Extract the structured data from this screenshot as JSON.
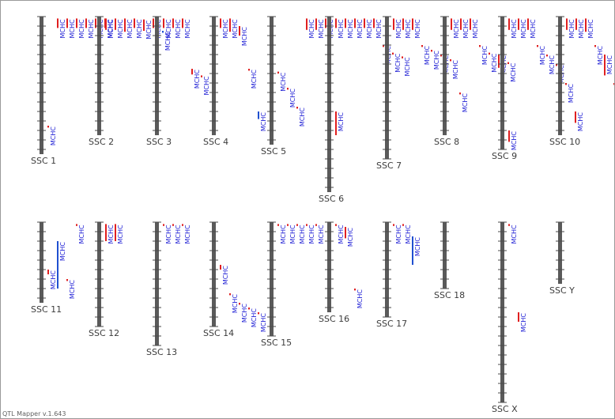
{
  "app": {
    "footer": "QTL Mapper v.1.643"
  },
  "colors": {
    "axis": "#5a5a5a",
    "tick": "#4a4a4a",
    "qtl_red": "#e02020",
    "qtl_blue": "#2050d0",
    "qtl_text": "#1a1ad4",
    "label": "#3c3c3c"
  },
  "trait": "MCHC",
  "chromosomes": [
    {
      "id": "SSC 1",
      "row": 0,
      "length_cM": 145,
      "qtl": [
        {
          "pos": 115,
          "color": "red"
        },
        {
          "pos": 2,
          "color": "red",
          "len": 10
        },
        {
          "pos": 2,
          "color": "red",
          "len": 10
        },
        {
          "pos": 2,
          "color": "red",
          "len": 10
        },
        {
          "pos": 2,
          "color": "red",
          "len": 10
        },
        {
          "pos": 2,
          "color": "red",
          "len": 10
        },
        {
          "pos": 2,
          "color": "red",
          "len": 10
        }
      ]
    },
    {
      "id": "SSC 2",
      "row": 0,
      "length_cM": 125,
      "qtl": [
        {
          "pos": 2,
          "color": "red",
          "len": 12
        },
        {
          "pos": 2,
          "color": "red",
          "len": 12
        },
        {
          "pos": 2,
          "color": "red",
          "len": 14
        },
        {
          "pos": 2,
          "color": "red",
          "len": 10
        },
        {
          "pos": 3,
          "color": "red",
          "len": 12
        },
        {
          "pos": 2,
          "color": "red",
          "len": 10
        },
        {
          "pos": 15,
          "color": "blue"
        }
      ]
    },
    {
      "id": "SSC 3",
      "row": 0,
      "length_cM": 125,
      "qtl": [
        {
          "pos": 2,
          "color": "red",
          "len": 10
        },
        {
          "pos": 2,
          "color": "red",
          "len": 10
        },
        {
          "pos": 2,
          "color": "red",
          "len": 10
        },
        {
          "pos": 55,
          "color": "red",
          "len": 6
        },
        {
          "pos": 62,
          "color": "red"
        }
      ]
    },
    {
      "id": "SSC 4",
      "row": 0,
      "length_cM": 125,
      "qtl": [
        {
          "pos": 2,
          "color": "red",
          "len": 10
        },
        {
          "pos": 2,
          "color": "red",
          "len": 14
        },
        {
          "pos": 10,
          "color": "red",
          "len": 10
        },
        {
          "pos": 55,
          "color": "red"
        },
        {
          "pos": 100,
          "color": "blue",
          "len": 8
        }
      ]
    },
    {
      "id": "SSC 5",
      "row": 0,
      "length_cM": 135,
      "qtl": [
        {
          "pos": 58,
          "color": "red"
        },
        {
          "pos": 75,
          "color": "red"
        },
        {
          "pos": 95,
          "color": "red"
        },
        {
          "pos": 2,
          "color": "red",
          "len": 12
        },
        {
          "pos": 2,
          "color": "red",
          "len": 12
        },
        {
          "pos": 2,
          "color": "red",
          "len": 10
        }
      ]
    },
    {
      "id": "SSC 6",
      "row": 0,
      "length_cM": 185,
      "qtl": [
        {
          "pos": 2,
          "color": "red",
          "len": 10
        },
        {
          "pos": 2,
          "color": "red",
          "len": 10
        },
        {
          "pos": 2,
          "color": "red",
          "len": 10
        },
        {
          "pos": 2,
          "color": "red",
          "len": 10
        },
        {
          "pos": 2,
          "color": "red",
          "len": 10
        },
        {
          "pos": 30,
          "color": "red"
        },
        {
          "pos": 38,
          "color": "red"
        },
        {
          "pos": 42,
          "color": "red"
        },
        {
          "pos": 100,
          "color": "red",
          "len": 25
        }
      ]
    },
    {
      "id": "SSC 7",
      "row": 0,
      "length_cM": 150,
      "qtl": [
        {
          "pos": 2,
          "color": "red",
          "len": 12
        },
        {
          "pos": 2,
          "color": "red",
          "len": 12
        },
        {
          "pos": 2,
          "color": "red",
          "len": 12
        },
        {
          "pos": 30,
          "color": "red"
        },
        {
          "pos": 35,
          "color": "red"
        },
        {
          "pos": 40,
          "color": "red"
        },
        {
          "pos": 45,
          "color": "red"
        },
        {
          "pos": 80,
          "color": "red"
        }
      ]
    },
    {
      "id": "SSC 8",
      "row": 0,
      "length_cM": 125,
      "qtl": [
        {
          "pos": 2,
          "color": "red",
          "len": 12
        },
        {
          "pos": 2,
          "color": "red",
          "len": 12
        },
        {
          "pos": 2,
          "color": "red",
          "len": 12
        },
        {
          "pos": 30,
          "color": "red"
        },
        {
          "pos": 38,
          "color": "red"
        },
        {
          "pos": 40,
          "color": "red",
          "len": 14
        },
        {
          "pos": 48,
          "color": "red"
        }
      ]
    },
    {
      "id": "SSC 9",
      "row": 0,
      "length_cM": 140,
      "qtl": [
        {
          "pos": 2,
          "color": "red",
          "len": 12
        },
        {
          "pos": 2,
          "color": "red",
          "len": 12
        },
        {
          "pos": 2,
          "color": "red",
          "len": 12
        },
        {
          "pos": 30,
          "color": "red"
        },
        {
          "pos": 40,
          "color": "red"
        },
        {
          "pos": 50,
          "color": "red"
        },
        {
          "pos": 70,
          "color": "red"
        },
        {
          "pos": 100,
          "color": "red",
          "len": 12
        },
        {
          "pos": 120,
          "color": "red",
          "len": 12
        }
      ]
    },
    {
      "id": "SSC 10",
      "row": 0,
      "length_cM": 125,
      "qtl": [
        {
          "pos": 2,
          "color": "red",
          "len": 12
        },
        {
          "pos": 2,
          "color": "red",
          "len": 12
        },
        {
          "pos": 2,
          "color": "red",
          "len": 14
        },
        {
          "pos": 30,
          "color": "red"
        },
        {
          "pos": 40,
          "color": "red",
          "len": 22
        },
        {
          "pos": 70,
          "color": "red"
        },
        {
          "pos": 105,
          "color": "red"
        }
      ]
    },
    {
      "id": "SSC 11",
      "row": 1,
      "length_cM": 85,
      "qtl": [
        {
          "pos": 50,
          "color": "red",
          "len": 5
        },
        {
          "pos": 20,
          "color": "blue",
          "len": 50
        },
        {
          "pos": 60,
          "color": "red"
        },
        {
          "pos": 2,
          "color": "red"
        }
      ]
    },
    {
      "id": "SSC 12",
      "row": 1,
      "length_cM": 110,
      "qtl": [
        {
          "pos": 2,
          "color": "red",
          "len": 18
        },
        {
          "pos": 2,
          "color": "red",
          "len": 18
        }
      ]
    },
    {
      "id": "SSC 13",
      "row": 1,
      "length_cM": 130,
      "qtl": [
        {
          "pos": 2,
          "color": "red"
        },
        {
          "pos": 2,
          "color": "red"
        },
        {
          "pos": 2,
          "color": "red"
        }
      ]
    },
    {
      "id": "SSC 14",
      "row": 1,
      "length_cM": 110,
      "qtl": [
        {
          "pos": 45,
          "color": "red",
          "len": 5
        },
        {
          "pos": 75,
          "color": "red"
        },
        {
          "pos": 85,
          "color": "red"
        },
        {
          "pos": 90,
          "color": "red"
        },
        {
          "pos": 95,
          "color": "red"
        }
      ]
    },
    {
      "id": "SSC 15",
      "row": 1,
      "length_cM": 120,
      "qtl": [
        {
          "pos": 2,
          "color": "red"
        },
        {
          "pos": 2,
          "color": "red"
        },
        {
          "pos": 2,
          "color": "red"
        },
        {
          "pos": 2,
          "color": "red"
        },
        {
          "pos": 2,
          "color": "red"
        }
      ]
    },
    {
      "id": "SSC 16",
      "row": 1,
      "length_cM": 95,
      "qtl": [
        {
          "pos": 2,
          "color": "red"
        },
        {
          "pos": 5,
          "color": "red",
          "len": 12
        },
        {
          "pos": 70,
          "color": "red"
        }
      ]
    },
    {
      "id": "SSC 17",
      "row": 1,
      "length_cM": 100,
      "qtl": [
        {
          "pos": 2,
          "color": "red"
        },
        {
          "pos": 2,
          "color": "red"
        },
        {
          "pos": 15,
          "color": "blue",
          "len": 30
        }
      ]
    },
    {
      "id": "SSC 18",
      "row": 1,
      "length_cM": 70,
      "qtl": []
    },
    {
      "id": "SSC X",
      "row": 1,
      "length_cM": 190,
      "qtl": [
        {
          "pos": 2,
          "color": "red"
        },
        {
          "pos": 95,
          "color": "red",
          "len": 10
        }
      ]
    },
    {
      "id": "SSC Y",
      "row": 1,
      "length_cM": 65,
      "qtl": []
    }
  ]
}
